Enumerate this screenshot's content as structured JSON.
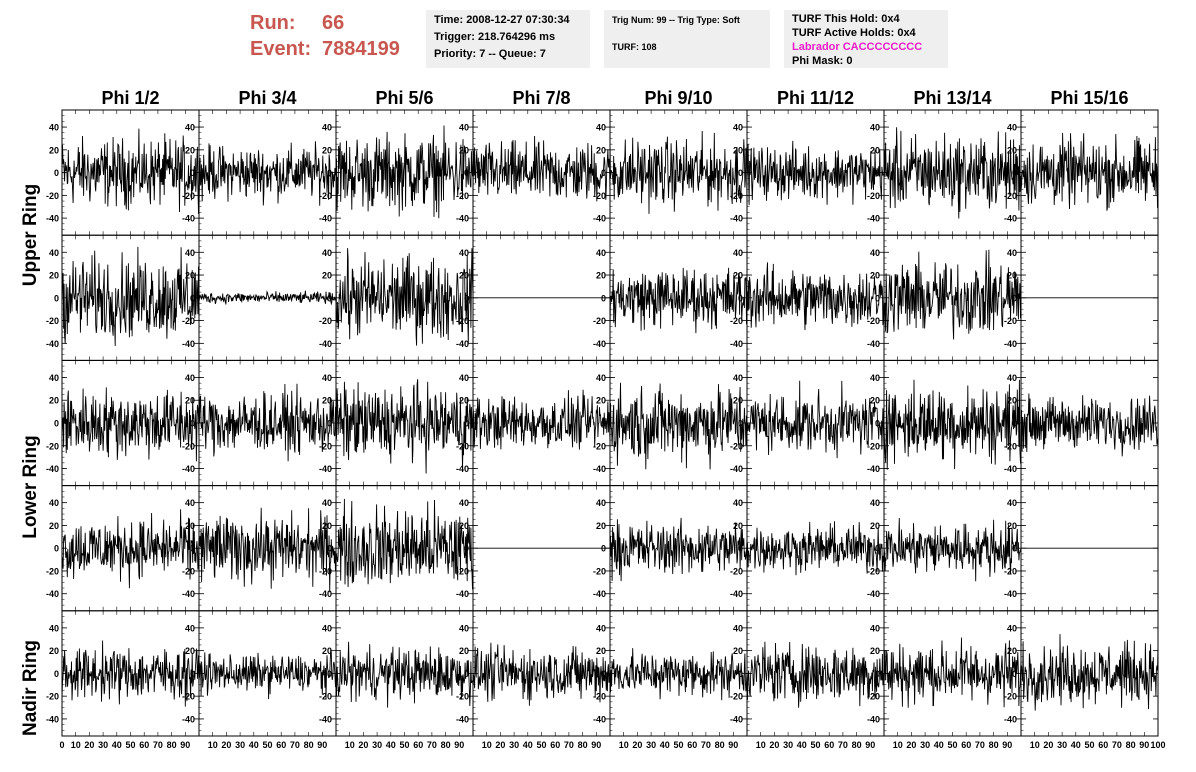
{
  "header": {
    "run_label": "Run:",
    "run_value": "66",
    "event_label": "Event:",
    "event_value": "7884199",
    "box1": [
      "Time: 2008-12-27 07:30:34",
      "Trigger: 218.764296 ms",
      "Priority: 7 -- Queue: 7"
    ],
    "box2_line1": "Trig Num: 99 -- Trig Type: Soft",
    "box2_line2": "TURF: 108",
    "box3_line1": "TURF This Hold: 0x4",
    "box3_line2": "TURF Active Holds: 0x4",
    "box3_line3": "Labrador CACCCCCCCC",
    "box3_line4": "Phi Mask: 0"
  },
  "colors": {
    "run_text": "#c8574f",
    "labrador_text": "#e91ec8",
    "info_bg": "#efefef",
    "trace": "#000000"
  },
  "chart_data": {
    "type": "line",
    "phi_headers": [
      "Phi 1/2",
      "Phi 3/4",
      "Phi 5/6",
      "Phi 7/8",
      "Phi 9/10",
      "Phi 11/12",
      "Phi 13/14",
      "Phi 15/16"
    ],
    "ring_labels": [
      "Upper Ring",
      "Lower Ring",
      "Nadir Ring"
    ],
    "ylim": [
      -55,
      55
    ],
    "xlim": [
      0,
      100
    ],
    "ytick_labels": [
      "-40",
      "-20",
      "0",
      "20",
      "40"
    ],
    "xtick_labels": [
      "0",
      "10",
      "20",
      "30",
      "40",
      "50",
      "60",
      "70",
      "80",
      "90",
      "100"
    ],
    "rows": [
      {
        "ring": "Upper Ring",
        "amplitudes": [
          18,
          14,
          20,
          16,
          18,
          14,
          20,
          18
        ]
      },
      {
        "ring": "Upper Ring",
        "amplitudes": [
          22,
          3,
          22,
          0,
          16,
          16,
          20,
          0
        ]
      },
      {
        "ring": "Lower Ring",
        "amplitudes": [
          18,
          16,
          20,
          14,
          20,
          16,
          20,
          14
        ]
      },
      {
        "ring": "Lower Ring",
        "amplitudes": [
          16,
          18,
          22,
          0,
          14,
          12,
          14,
          0
        ]
      },
      {
        "ring": "Nadir Ring",
        "amplitudes": [
          14,
          10,
          14,
          14,
          12,
          16,
          16,
          16
        ]
      }
    ]
  }
}
